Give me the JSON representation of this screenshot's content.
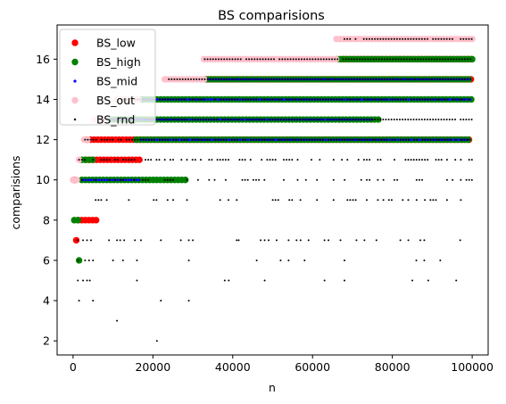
{
  "chart_data": {
    "type": "scatter",
    "title": "BS comparisions",
    "xlabel": "n",
    "ylabel": "comparisions",
    "xlim": [
      -4000,
      104000
    ],
    "ylim": [
      1.3,
      17.7
    ],
    "xticks": [
      0,
      20000,
      40000,
      60000,
      80000,
      100000
    ],
    "xtick_labels": [
      "0",
      "20000",
      "40000",
      "60000",
      "80000",
      "100000"
    ],
    "yticks": [
      2,
      4,
      6,
      8,
      10,
      12,
      14,
      16
    ],
    "ytick_labels": [
      "2",
      "4",
      "6",
      "8",
      "10",
      "12",
      "14",
      "16"
    ],
    "grid": false,
    "legend_position": "upper-left",
    "x_range": [
      1,
      100000
    ],
    "series": [
      {
        "name": "BS_low",
        "color": "#ff0000",
        "marker": "large-dot",
        "bands": [
          {
            "y": 7,
            "x_from": 800,
            "x_to": 1300
          },
          {
            "y": 8,
            "x_from": 1300,
            "x_to": 5800
          },
          {
            "y": 10,
            "x_from": 400,
            "x_to": 1100
          },
          {
            "y": 11,
            "x_from": 3200,
            "x_to": 17300
          },
          {
            "y": 12,
            "x_from": 3500,
            "x_to": 100000
          },
          {
            "y": 15,
            "x_from": 33500,
            "x_to": 100000
          },
          {
            "y": 16,
            "x_from": 67500,
            "x_to": 100000
          }
        ]
      },
      {
        "name": "BS_high",
        "color": "#008000",
        "marker": "large-dot",
        "bands": [
          {
            "y": 6,
            "x_from": 1500,
            "x_to": 1900
          },
          {
            "y": 8,
            "x_from": 300,
            "x_to": 1300
          },
          {
            "y": 10,
            "x_from": 2200,
            "x_to": 28700
          },
          {
            "y": 11,
            "x_from": 2200,
            "x_to": 5500
          },
          {
            "y": 12,
            "x_from": 15800,
            "x_to": 99000
          },
          {
            "y": 13,
            "x_from": 8500,
            "x_to": 76500
          },
          {
            "y": 14,
            "x_from": 13000,
            "x_to": 100000
          },
          {
            "y": 15,
            "x_from": 33000,
            "x_to": 99500
          },
          {
            "y": 16,
            "x_from": 66000,
            "x_to": 100000
          }
        ]
      },
      {
        "name": "BS_mid",
        "color": "#0000ff",
        "marker": "small-dot",
        "bands": [
          {
            "y": 10,
            "x_from": 2500,
            "x_to": 17000
          },
          {
            "y": 12,
            "x_from": 17000,
            "x_to": 99000
          },
          {
            "y": 13,
            "x_from": 8500,
            "x_to": 75000
          },
          {
            "y": 14,
            "x_from": 13000,
            "x_to": 100000
          },
          {
            "y": 15,
            "x_from": 33000,
            "x_to": 99500
          }
        ]
      },
      {
        "name": "BS_out",
        "color": "#ffc0cb",
        "marker": "large-dot",
        "bands": [
          {
            "y": 10,
            "x_from": 1,
            "x_to": 1100
          },
          {
            "y": 11,
            "x_from": 1500,
            "x_to": 2100
          },
          {
            "y": 12,
            "x_from": 2800,
            "x_to": 3800
          },
          {
            "y": 13,
            "x_from": 5500,
            "x_to": 8500
          },
          {
            "y": 14,
            "x_from": 11000,
            "x_to": 16500
          },
          {
            "y": 15,
            "x_from": 23000,
            "x_to": 33000
          },
          {
            "y": 16,
            "x_from": 32800,
            "x_to": 66000
          },
          {
            "y": 17,
            "x_from": 66000,
            "x_to": 100000
          }
        ]
      },
      {
        "name": "BS_rnd",
        "color": "#000000",
        "marker": "tiny-dot",
        "bands": [
          {
            "y": 10,
            "x_from": 1500,
            "x_to": 100000,
            "density": 0.38
          },
          {
            "y": 11,
            "x_from": 1500,
            "x_to": 100000,
            "density": 0.55
          },
          {
            "y": 12,
            "x_from": 3000,
            "x_to": 100000,
            "density": 0.85
          },
          {
            "y": 13,
            "x_from": 7000,
            "x_to": 100000,
            "density": 0.92
          },
          {
            "y": 14,
            "x_from": 12000,
            "x_to": 100000,
            "density": 0.92
          },
          {
            "y": 15,
            "x_from": 24000,
            "x_to": 100000,
            "density": 0.95
          },
          {
            "y": 16,
            "x_from": 33000,
            "x_to": 100000,
            "density": 0.95
          },
          {
            "y": 17,
            "x_from": 68000,
            "x_to": 100000,
            "density": 0.95
          },
          {
            "y": 9,
            "x_from": 1500,
            "x_to": 100000,
            "density": 0.3
          }
        ],
        "points": [
          {
            "x": 21000,
            "y": 2
          },
          {
            "x": 11000,
            "y": 3
          },
          {
            "x": 1500,
            "y": 4
          },
          {
            "x": 5000,
            "y": 4
          },
          {
            "x": 22000,
            "y": 4
          },
          {
            "x": 29000,
            "y": 4
          },
          {
            "x": 1200,
            "y": 5
          },
          {
            "x": 2500,
            "y": 5
          },
          {
            "x": 3500,
            "y": 5
          },
          {
            "x": 4200,
            "y": 5
          },
          {
            "x": 16000,
            "y": 5
          },
          {
            "x": 38000,
            "y": 5
          },
          {
            "x": 39000,
            "y": 5
          },
          {
            "x": 48000,
            "y": 5
          },
          {
            "x": 63000,
            "y": 5
          },
          {
            "x": 68000,
            "y": 5
          },
          {
            "x": 85000,
            "y": 5
          },
          {
            "x": 89000,
            "y": 5
          },
          {
            "x": 96000,
            "y": 5
          },
          {
            "x": 1300,
            "y": 6
          },
          {
            "x": 3000,
            "y": 6
          },
          {
            "x": 4000,
            "y": 6
          },
          {
            "x": 5000,
            "y": 6
          },
          {
            "x": 10000,
            "y": 6
          },
          {
            "x": 12500,
            "y": 6
          },
          {
            "x": 16000,
            "y": 6
          },
          {
            "x": 29000,
            "y": 6
          },
          {
            "x": 46000,
            "y": 6
          },
          {
            "x": 52000,
            "y": 6
          },
          {
            "x": 54000,
            "y": 6
          },
          {
            "x": 58000,
            "y": 6
          },
          {
            "x": 68000,
            "y": 6
          },
          {
            "x": 86000,
            "y": 6
          },
          {
            "x": 88000,
            "y": 6
          },
          {
            "x": 92000,
            "y": 6
          },
          {
            "x": 1200,
            "y": 7
          },
          {
            "x": 2500,
            "y": 7
          },
          {
            "x": 3500,
            "y": 7
          },
          {
            "x": 4500,
            "y": 7
          },
          {
            "x": 9000,
            "y": 7
          },
          {
            "x": 11000,
            "y": 7
          },
          {
            "x": 11800,
            "y": 7
          },
          {
            "x": 12800,
            "y": 7
          },
          {
            "x": 15500,
            "y": 7
          },
          {
            "x": 17000,
            "y": 7
          },
          {
            "x": 22000,
            "y": 7
          },
          {
            "x": 27000,
            "y": 7
          },
          {
            "x": 29000,
            "y": 7
          },
          {
            "x": 30000,
            "y": 7
          },
          {
            "x": 41000,
            "y": 7
          },
          {
            "x": 41500,
            "y": 7
          },
          {
            "x": 47000,
            "y": 7
          },
          {
            "x": 48000,
            "y": 7
          },
          {
            "x": 49000,
            "y": 7
          },
          {
            "x": 51000,
            "y": 7
          },
          {
            "x": 54000,
            "y": 7
          },
          {
            "x": 56000,
            "y": 7
          },
          {
            "x": 57000,
            "y": 7
          },
          {
            "x": 59000,
            "y": 7
          },
          {
            "x": 63000,
            "y": 7
          },
          {
            "x": 64000,
            "y": 7
          },
          {
            "x": 67000,
            "y": 7
          },
          {
            "x": 71000,
            "y": 7
          },
          {
            "x": 73000,
            "y": 7
          },
          {
            "x": 76000,
            "y": 7
          },
          {
            "x": 82000,
            "y": 7
          },
          {
            "x": 84000,
            "y": 7
          },
          {
            "x": 87000,
            "y": 7
          },
          {
            "x": 88000,
            "y": 7
          },
          {
            "x": 97000,
            "y": 7
          }
        ]
      }
    ]
  }
}
